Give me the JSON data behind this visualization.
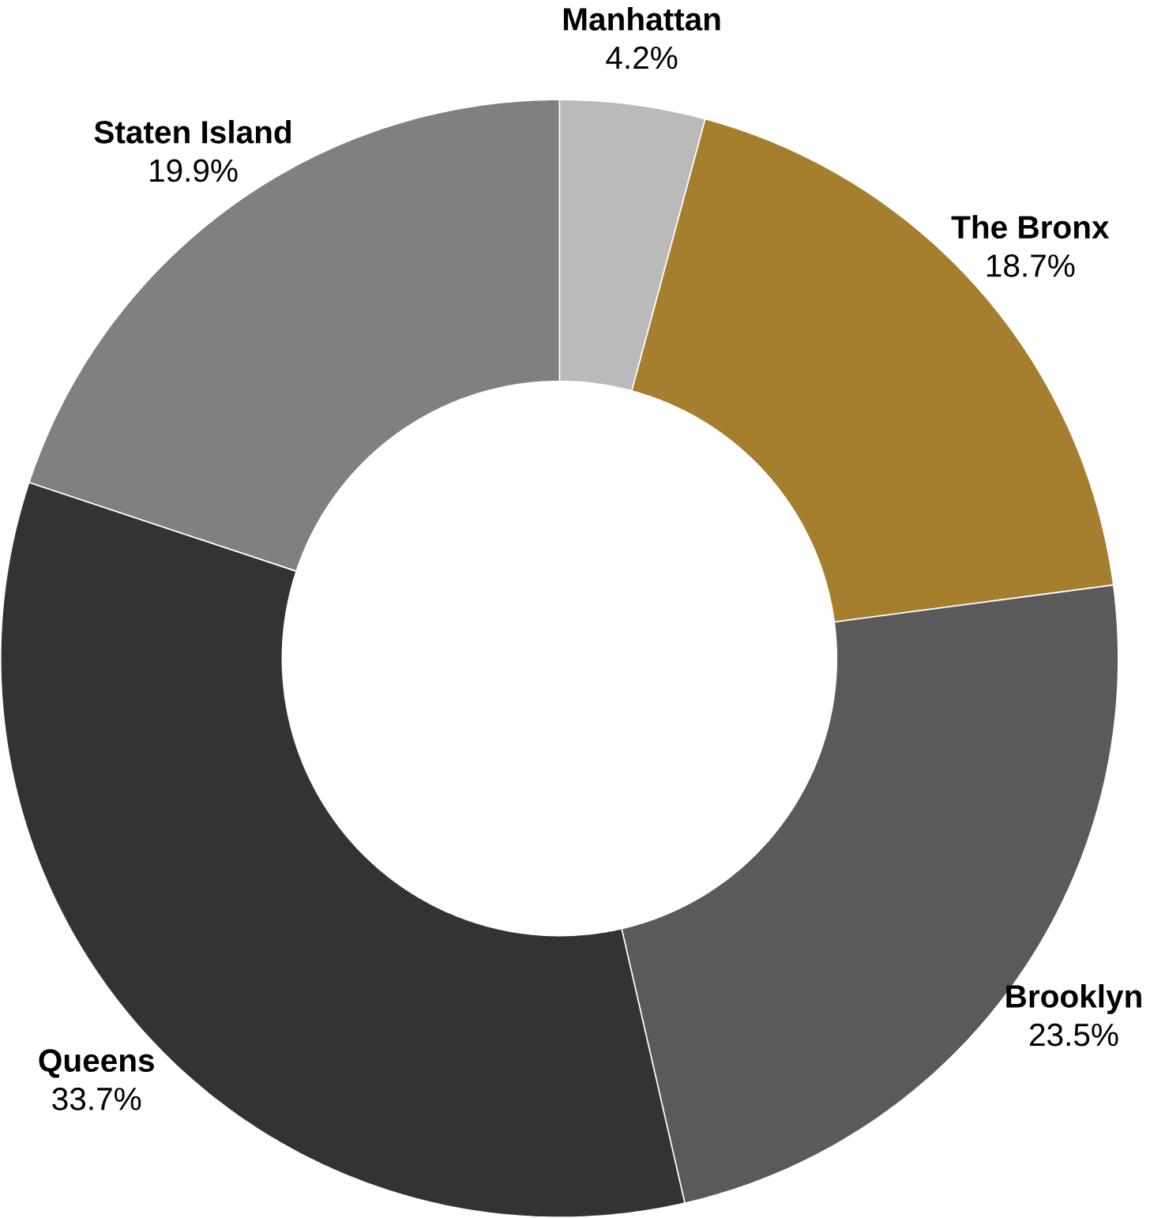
{
  "chart_data": {
    "type": "donut",
    "categories": [
      "Manhattan",
      "The Bronx",
      "Brooklyn",
      "Queens",
      "Staten Island"
    ],
    "values": [
      4.2,
      18.7,
      23.5,
      33.7,
      19.9
    ],
    "colors": [
      "#b9bab9",
      "#a67f2e",
      "#5a5a5a",
      "#333333",
      "#808083"
    ],
    "value_labels": [
      "4.2%",
      "18.7%",
      "23.5%",
      "33.7%",
      "19.9%"
    ]
  }
}
